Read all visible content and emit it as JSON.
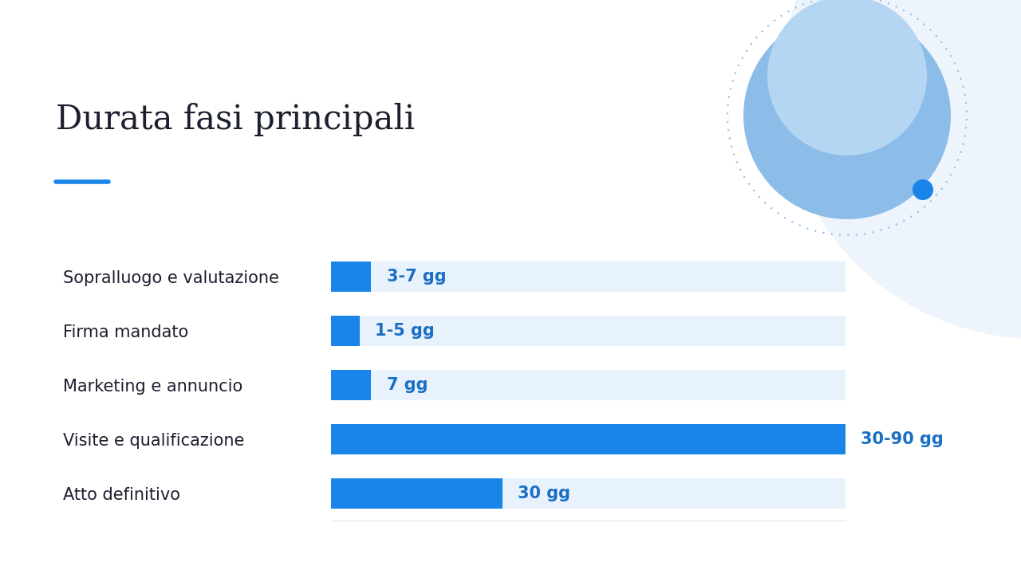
{
  "chart_data": {
    "type": "bar",
    "orientation": "horizontal",
    "title": "Durata fasi principali",
    "categories": [
      "Sopralluogo e valutazione",
      "Firma mandato",
      "Marketing e annuncio",
      "Visite e qualificazione",
      "Atto definitivo"
    ],
    "values": [
      7,
      5,
      7,
      90,
      30
    ],
    "value_labels": [
      "3-7 gg",
      "1-5 gg",
      "7 gg",
      "30-90 gg",
      "30 gg"
    ],
    "color": "#1a85e8",
    "xlim": [
      0,
      90
    ],
    "xticks": [],
    "data_labels": true,
    "tick_labels": "y",
    "grid": false
  }
}
